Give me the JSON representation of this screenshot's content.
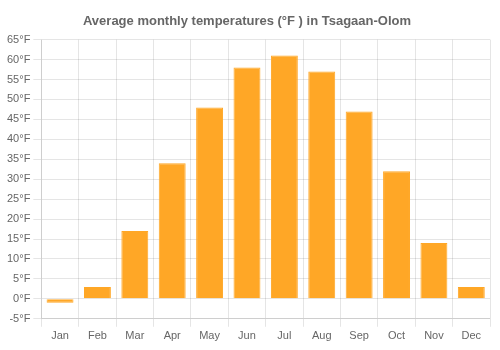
{
  "chart_data": {
    "type": "bar",
    "title": "Average monthly temperatures (°F ) in Tsagaan-Olom",
    "categories": [
      "Jan",
      "Feb",
      "Mar",
      "Apr",
      "May",
      "Jun",
      "Jul",
      "Aug",
      "Sep",
      "Oct",
      "Nov",
      "Dec"
    ],
    "values": [
      -1,
      3,
      17,
      34,
      48,
      58,
      61,
      57,
      47,
      32,
      14,
      3
    ],
    "color": "#FFA726",
    "ylim": [
      -5,
      65
    ],
    "yticks": [
      {
        "value": -5,
        "label": "-5°F"
      },
      {
        "value": 0,
        "label": "0°F"
      },
      {
        "value": 5,
        "label": "5°F"
      },
      {
        "value": 10,
        "label": "10°F"
      },
      {
        "value": 15,
        "label": "15°F"
      },
      {
        "value": 20,
        "label": "20°F"
      },
      {
        "value": 25,
        "label": "25°F"
      },
      {
        "value": 30,
        "label": "30°F"
      },
      {
        "value": 35,
        "label": "35°F"
      },
      {
        "value": 40,
        "label": "40°F"
      },
      {
        "value": 45,
        "label": "45°F"
      },
      {
        "value": 50,
        "label": "50°F"
      },
      {
        "value": 55,
        "label": "55°F"
      },
      {
        "value": 60,
        "label": "60°F"
      },
      {
        "value": 65,
        "label": "65°F"
      }
    ],
    "grid": true
  }
}
